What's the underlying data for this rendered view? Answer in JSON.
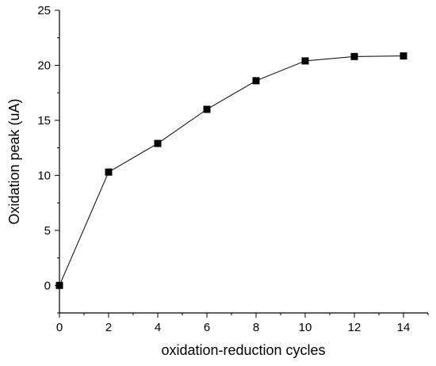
{
  "chart_data": {
    "type": "line",
    "title": "",
    "xlabel": "oxidation-reduction cycles",
    "ylabel": "Oxidation peak (uA)",
    "xlim": [
      0,
      15
    ],
    "ylim": [
      -2.5,
      25
    ],
    "x_ticks": [
      0,
      2,
      4,
      6,
      8,
      10,
      12,
      14
    ],
    "y_ticks": [
      0,
      5,
      10,
      15,
      20,
      25
    ],
    "grid": false,
    "legend": "none",
    "series": [
      {
        "marker": "square",
        "color": "#000000",
        "x": [
          0,
          2,
          4,
          6,
          8,
          10,
          12,
          14
        ],
        "y": [
          0,
          10.3,
          12.9,
          16.0,
          18.6,
          20.4,
          20.8,
          20.85
        ]
      }
    ]
  }
}
